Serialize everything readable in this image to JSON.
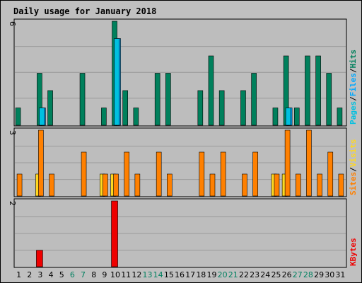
{
  "colors": {
    "background": "#c0c0c0",
    "frame_bg": "#cccccc",
    "title": "#0000aa",
    "hits": "#00805c",
    "files": "#00a8ff",
    "pages": "#00c0e0",
    "visits": "#ffd820",
    "sites": "#ff8000",
    "kbytes": "#ee0000",
    "weekend_label": "#008060",
    "weekday_label": "#000000",
    "slash": "#000000"
  },
  "chart_data": {
    "type": "bar",
    "title": "Daily usage for January 2018",
    "x": [
      "1",
      "2",
      "3",
      "4",
      "5",
      "6",
      "7",
      "8",
      "9",
      "10",
      "11",
      "12",
      "13",
      "14",
      "15",
      "16",
      "17",
      "18",
      "19",
      "20",
      "21",
      "22",
      "23",
      "24",
      "25",
      "26",
      "27",
      "28",
      "29",
      "30",
      "31"
    ],
    "weekend_days": [
      "6",
      "7",
      "13",
      "14",
      "20",
      "21",
      "27",
      "28"
    ],
    "panels": [
      {
        "id": "hits-files-pages",
        "ymax_label": "6",
        "ylim": [
          0,
          6
        ],
        "grid": true,
        "legend": [
          {
            "text": "Hits",
            "color": "hits"
          },
          {
            "text": "/",
            "color": "slash"
          },
          {
            "text": "Files",
            "color": "files"
          },
          {
            "text": "/",
            "color": "slash"
          },
          {
            "text": "Pages",
            "color": "pages"
          }
        ],
        "series": [
          {
            "name": "Hits",
            "color": "hits",
            "values": [
              1,
              0,
              3,
              2,
              0,
              0,
              3,
              0,
              1,
              6,
              2,
              1,
              0,
              3,
              3,
              0,
              0,
              2,
              4,
              2,
              0,
              2,
              3,
              0,
              1,
              4,
              1,
              4,
              4,
              3,
              1
            ]
          },
          {
            "name": "Files",
            "color": "files",
            "values": [
              0,
              0,
              1,
              0,
              0,
              0,
              0,
              0,
              0,
              5,
              0,
              0,
              0,
              0,
              0,
              0,
              0,
              0,
              0,
              0,
              0,
              0,
              0,
              0,
              0,
              1,
              0,
              0,
              0,
              0,
              0
            ]
          },
          {
            "name": "Pages",
            "color": "pages",
            "values": [
              0,
              0,
              1,
              0,
              0,
              0,
              0,
              0,
              0,
              5,
              0,
              0,
              0,
              0,
              0,
              0,
              0,
              0,
              0,
              0,
              0,
              0,
              0,
              0,
              0,
              1,
              0,
              0,
              0,
              0,
              0
            ]
          }
        ]
      },
      {
        "id": "visits-sites",
        "ymax_label": "3",
        "ylim": [
          0,
          3
        ],
        "grid": true,
        "legend": [
          {
            "text": "Visits",
            "color": "visits"
          },
          {
            "text": "/",
            "color": "slash"
          },
          {
            "text": "Sites",
            "color": "sites"
          }
        ],
        "series": [
          {
            "name": "Visits",
            "color": "visits",
            "values": [
              0,
              0,
              1,
              0,
              0,
              0,
              0,
              0,
              1,
              1,
              0,
              0,
              0,
              0,
              0,
              0,
              0,
              0,
              0,
              0,
              0,
              0,
              0,
              0,
              1,
              1,
              0,
              0,
              0,
              0,
              0
            ]
          },
          {
            "name": "Sites",
            "color": "sites",
            "values": [
              1,
              0,
              3,
              1,
              0,
              0,
              2,
              0,
              1,
              1,
              2,
              1,
              0,
              2,
              1,
              0,
              0,
              2,
              1,
              2,
              0,
              1,
              2,
              0,
              1,
              3,
              1,
              3,
              1,
              2,
              1
            ]
          }
        ]
      },
      {
        "id": "kbytes",
        "ymax_label": "2",
        "ylim": [
          0,
          2
        ],
        "grid": true,
        "legend": [
          {
            "text": "KBytes",
            "color": "kbytes"
          }
        ],
        "series": [
          {
            "name": "KBytes",
            "color": "kbytes",
            "values": [
              0,
              0,
              0.5,
              0,
              0,
              0,
              0,
              0,
              0,
              2,
              0,
              0,
              0,
              0,
              0,
              0,
              0,
              0,
              0,
              0,
              0,
              0,
              0,
              0,
              0,
              0,
              0,
              0,
              0,
              0,
              0
            ]
          }
        ]
      }
    ]
  }
}
